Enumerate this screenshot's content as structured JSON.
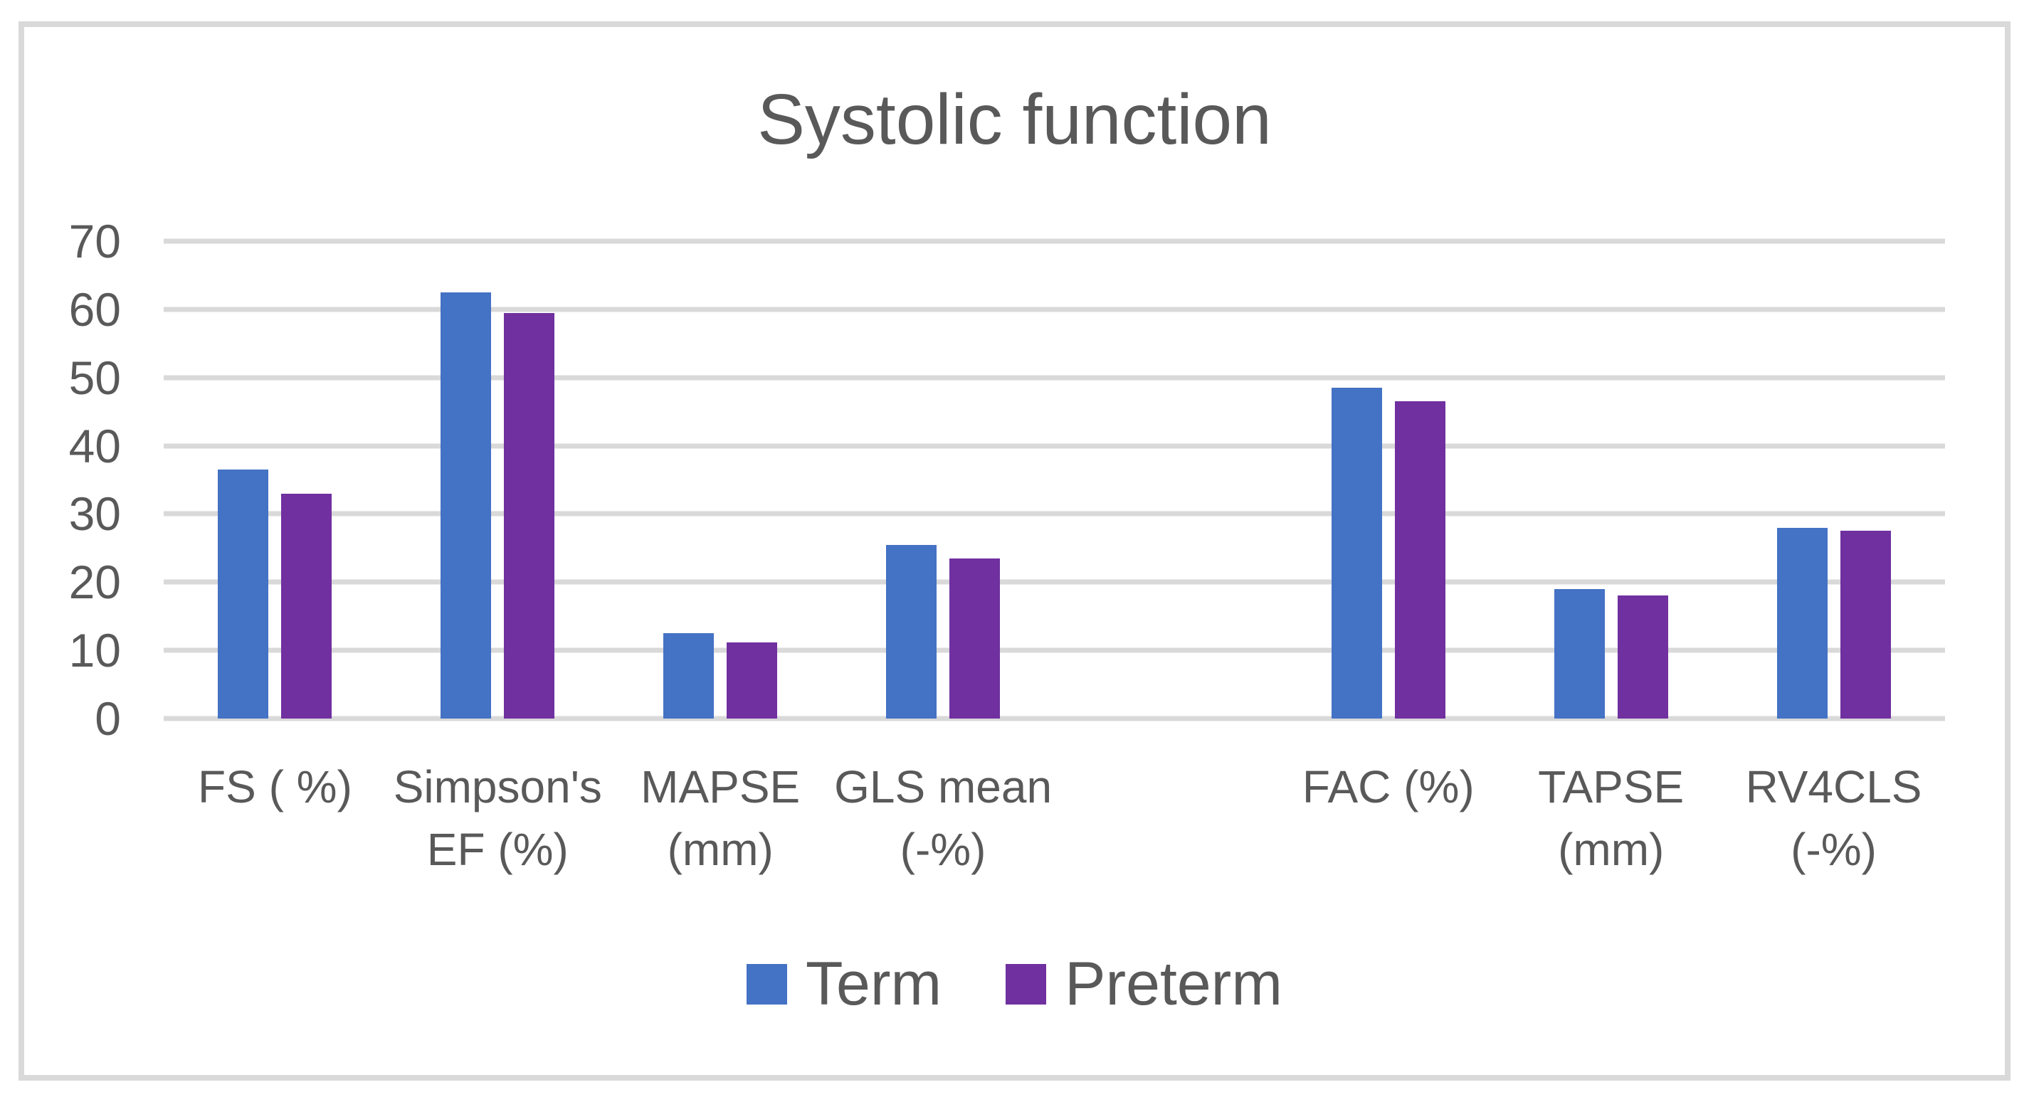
{
  "figure": {
    "background": "#ffffff",
    "border_color": "#d9d9d9",
    "gridline_color": "#d9d9d9",
    "text_color": "#595959"
  },
  "chart_data": {
    "type": "bar",
    "title": "Systolic function",
    "categories": [
      "FS ( %)",
      "Simpson's\nEF (%)",
      "MAPSE\n(mm)",
      "GLS mean\n(-%)",
      "",
      "FAC (%)",
      "TAPSE\n(mm)",
      "RV4CLS\n(-%)"
    ],
    "series": [
      {
        "name": "Term",
        "color": "#4472C4",
        "values": [
          36.5,
          62.5,
          12.5,
          25.5,
          null,
          48.5,
          19,
          28
        ]
      },
      {
        "name": "Preterm",
        "color": "#7030A0",
        "values": [
          33,
          59.5,
          11.2,
          23.5,
          null,
          46.5,
          18,
          27.5
        ]
      }
    ],
    "xlabel": "",
    "ylabel": "",
    "ylim": [
      0,
      70
    ],
    "yticks": [
      0,
      10,
      20,
      30,
      40,
      50,
      60,
      70
    ],
    "grid": true,
    "legend_position": "bottom"
  }
}
